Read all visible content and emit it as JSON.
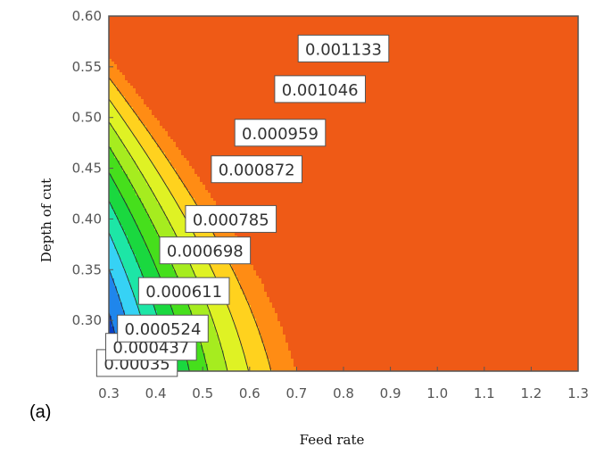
{
  "chart_data": {
    "type": "contour",
    "panel_label": "(a)",
    "xlabel": "Feed rate",
    "ylabel": "Depth of cut",
    "xlim": [
      0.3,
      1.3
    ],
    "ylim": [
      0.25,
      0.6
    ],
    "x_ticks": [
      "0.3",
      "0.4",
      "0.5",
      "0.6",
      "0.7",
      "0.8",
      "0.9",
      "1.0",
      "1.1",
      "1.2",
      "1.3"
    ],
    "y_ticks": [
      "0.30",
      "0.35",
      "0.40",
      "0.45",
      "0.50",
      "0.55",
      "0.60"
    ],
    "x_tick_values": [
      0.3,
      0.4,
      0.5,
      0.6,
      0.7,
      0.8,
      0.9,
      1.0,
      1.1,
      1.2,
      1.3
    ],
    "y_tick_values": [
      0.3,
      0.35,
      0.4,
      0.45,
      0.5,
      0.55,
      0.6
    ],
    "contour_levels": [
      {
        "label": "0.00035",
        "value": 0.00035,
        "color": "#0a3fc4",
        "label_x": 0.36,
        "label_y": 0.258
      },
      {
        "label": "0.000437",
        "value": 0.000437,
        "color": "#1f86ec",
        "label_x": 0.39,
        "label_y": 0.274
      },
      {
        "label": "0.000524",
        "value": 0.000524,
        "color": "#36d2f5",
        "label_x": 0.415,
        "label_y": 0.292
      },
      {
        "label": "0.000611",
        "value": 0.000611,
        "color": "#1de6a6",
        "label_x": 0.46,
        "label_y": 0.329
      },
      {
        "label": "0.000698",
        "value": 0.000698,
        "color": "#1ad83f",
        "label_x": 0.505,
        "label_y": 0.369
      },
      {
        "label": "0.000785",
        "value": 0.000785,
        "color": "#46df1c",
        "label_x": 0.56,
        "label_y": 0.4
      },
      {
        "label": "0.000872",
        "value": 0.000872,
        "color": "#a6ec1f",
        "label_x": 0.615,
        "label_y": 0.449
      },
      {
        "label": "0.000959",
        "value": 0.000959,
        "color": "#dff224",
        "label_x": 0.665,
        "label_y": 0.485
      },
      {
        "label": "0.001046",
        "value": 0.001046,
        "color": "#ffd21e",
        "label_x": 0.75,
        "label_y": 0.528
      },
      {
        "label": "0.001133",
        "value": 0.001133,
        "color": "#ff8c14",
        "label_x": 0.8,
        "label_y": 0.568
      }
    ],
    "top_color": "#ef5a16",
    "low_color": "#0a3fc4"
  }
}
